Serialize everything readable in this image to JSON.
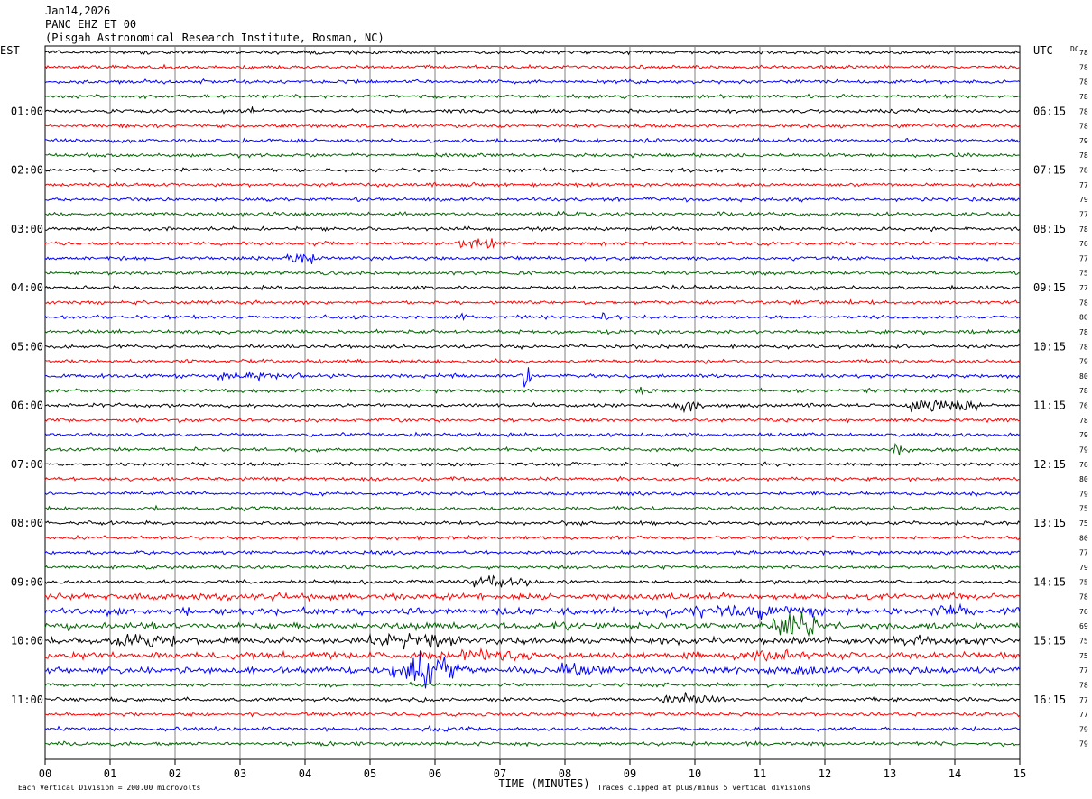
{
  "header": {
    "date": "Jan14,2026",
    "station": "PANC EHZ ET 00",
    "site": "(Pisgah Astronomical Research Institute, Rosman, NC)"
  },
  "chart_data": {
    "type": "line",
    "title": "Jan14,2026",
    "left_timezone": "EST",
    "right_timezone": "UTC",
    "dc_label": "DC",
    "xlabel": "TIME (MINUTES)",
    "x_ticks": [
      "00",
      "01",
      "02",
      "03",
      "04",
      "05",
      "06",
      "07",
      "08",
      "09",
      "10",
      "11",
      "12",
      "13",
      "14",
      "15"
    ],
    "xlim": [
      0,
      15
    ],
    "trace_colors": [
      "#000000",
      "#ff0000",
      "#0000ff",
      "#006400"
    ],
    "left_hour_labels": [
      "01:00",
      "02:00",
      "03:00",
      "04:00",
      "05:00",
      "06:00",
      "07:00",
      "08:00",
      "09:00",
      "10:00",
      "11:00"
    ],
    "right_hour_labels": [
      "06:15",
      "07:15",
      "08:15",
      "09:15",
      "10:15",
      "11:15",
      "12:15",
      "13:15",
      "14:15",
      "15:15",
      "16:15"
    ],
    "dc_offsets": [
      78,
      78,
      78,
      78,
      78,
      78,
      79,
      78,
      78,
      77,
      79,
      77,
      78,
      76,
      77,
      75,
      77,
      78,
      80,
      78,
      78,
      79,
      80,
      78,
      76,
      78,
      79,
      79,
      76,
      80,
      79,
      75,
      75,
      80,
      77,
      79,
      75,
      78,
      76,
      69,
      75,
      75,
      77,
      78,
      77,
      77,
      79,
      79
    ],
    "footer_scale": "Each Vertical Division =  200.00 microvolts",
    "footer_clip": "Traces clipped at plus/minus 5 vertical divisions"
  }
}
